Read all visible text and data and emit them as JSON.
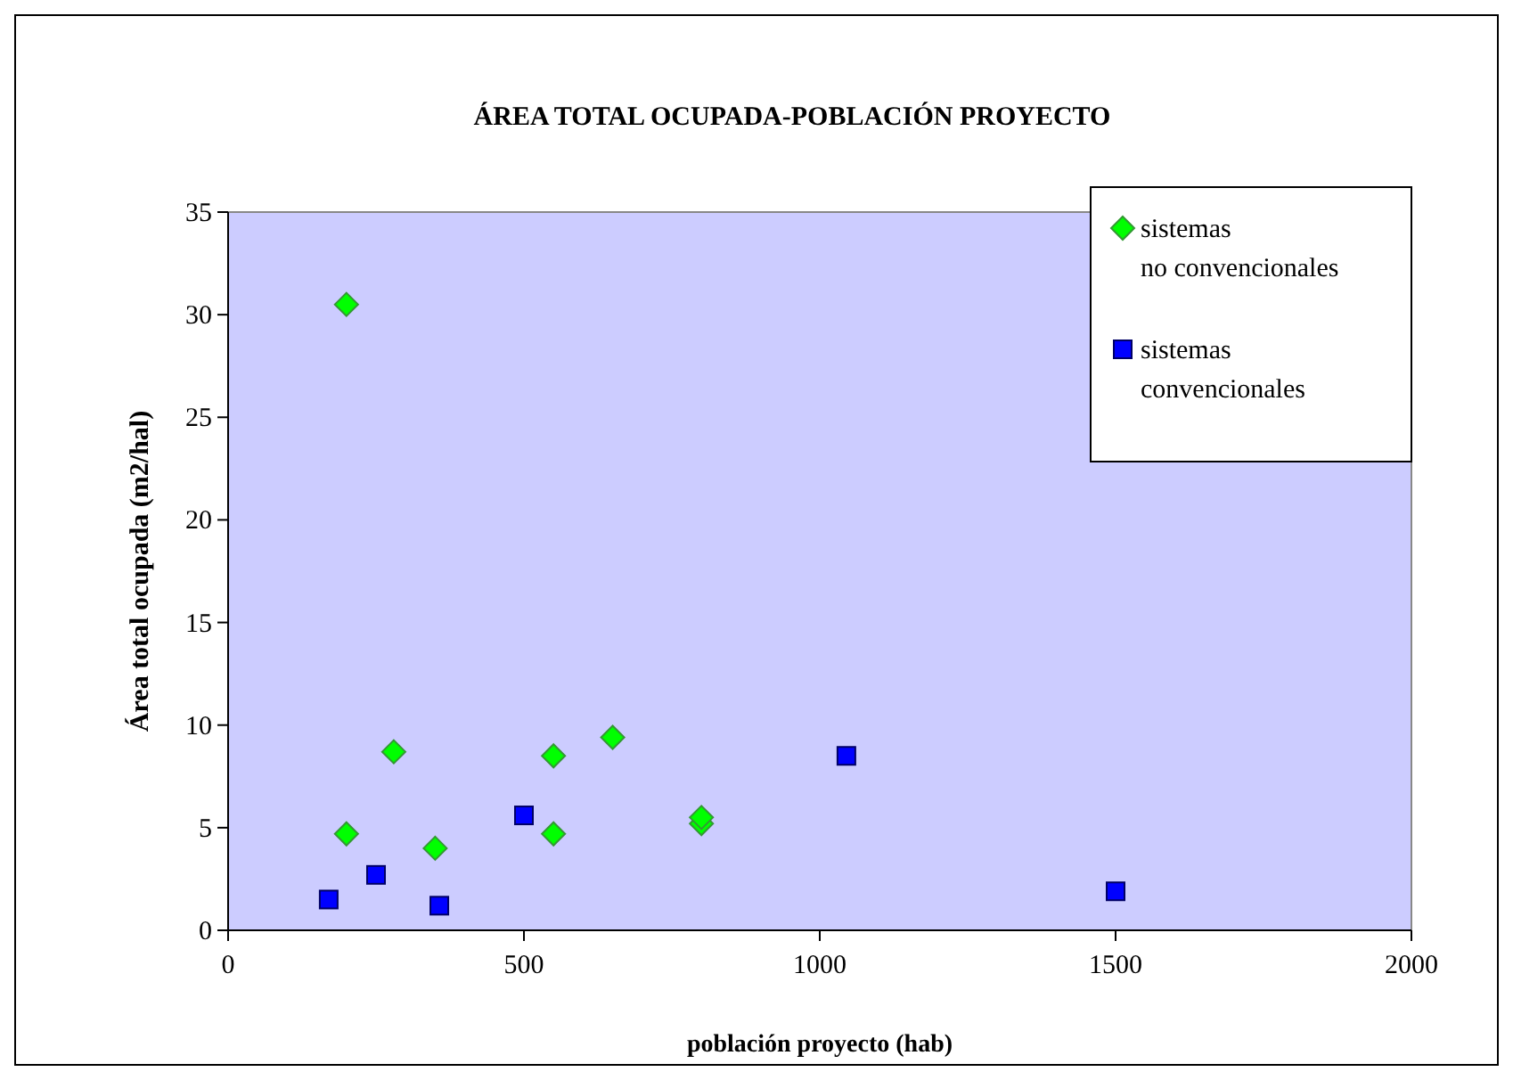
{
  "chart_data": {
    "type": "scatter",
    "title": "ÁREA TOTAL OCUPADA-POBLACIÓN PROYECTO",
    "xlabel": "población proyecto (hab)",
    "ylabel": "Área total ocupada (m2/hal)",
    "xlim": [
      0,
      2000
    ],
    "xticks": [
      0,
      500,
      1000,
      1500,
      2000
    ],
    "ylim": [
      0,
      35
    ],
    "yticks": [
      0,
      5,
      10,
      15,
      20,
      25,
      30,
      35
    ],
    "grid": false,
    "legend": "top right",
    "series": [
      {
        "name": "sistemas no convencionales",
        "color": "#00ff00",
        "marker": "diamond",
        "x": [
          200,
          200,
          280,
          350,
          550,
          550,
          650,
          800,
          800
        ],
        "values": [
          30.5,
          4.7,
          8.7,
          4.0,
          8.5,
          4.7,
          9.4,
          5.2,
          5.5
        ]
      },
      {
        "name": "sistemas convencionales",
        "color": "#0000ff",
        "marker": "square",
        "x": [
          170,
          250,
          357,
          500,
          1045,
          1500
        ],
        "values": [
          1.5,
          2.7,
          1.2,
          5.6,
          8.5,
          1.9
        ]
      }
    ]
  }
}
